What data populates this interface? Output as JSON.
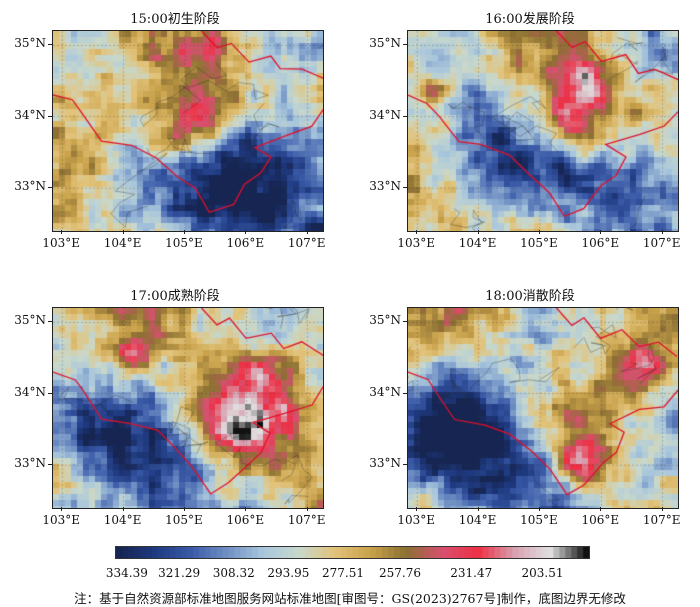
{
  "panels": [
    {
      "title": "15:00初生阶段",
      "seed": 11,
      "hotspots": [
        [
          0.55,
          0.4,
          0.1,
          1.0
        ],
        [
          0.45,
          0.55,
          0.06,
          0.7
        ],
        [
          0.6,
          0.1,
          0.06,
          0.6
        ]
      ],
      "cold": [
        [
          0.85,
          0.65,
          0.2
        ],
        [
          0.7,
          0.9,
          0.25
        ]
      ]
    },
    {
      "title": "16:00发展阶段",
      "seed": 23,
      "hotspots": [
        [
          0.6,
          0.45,
          0.12,
          1.0
        ],
        [
          0.65,
          0.25,
          0.08,
          0.8
        ],
        [
          0.1,
          0.3,
          0.04,
          0.6
        ]
      ],
      "cold": [
        [
          0.85,
          0.75,
          0.22
        ],
        [
          0.3,
          0.55,
          0.18
        ]
      ]
    },
    {
      "title": "17:00成熟阶段",
      "seed": 37,
      "hotspots": [
        [
          0.68,
          0.55,
          0.14,
          1.0
        ],
        [
          0.75,
          0.3,
          0.08,
          0.7
        ],
        [
          0.3,
          0.2,
          0.05,
          0.6
        ]
      ],
      "cold": [
        [
          0.45,
          0.8,
          0.2
        ],
        [
          0.1,
          0.55,
          0.15
        ]
      ]
    },
    {
      "title": "18:00消散阶段",
      "seed": 51,
      "hotspots": [
        [
          0.65,
          0.75,
          0.08,
          1.0
        ],
        [
          0.85,
          0.3,
          0.08,
          0.8
        ],
        [
          0.6,
          0.55,
          0.05,
          0.5
        ]
      ],
      "cold": [
        [
          0.2,
          0.55,
          0.2
        ],
        [
          0.4,
          0.85,
          0.2
        ]
      ]
    }
  ],
  "axes": {
    "lat_labels": [
      "35°N",
      "34°N",
      "33°N"
    ],
    "lat_values": [
      35,
      34,
      33
    ],
    "lon_labels": [
      "103°E",
      "104°E",
      "105°E",
      "106°E",
      "107°E"
    ],
    "lon_values": [
      103,
      104,
      105,
      106,
      107
    ],
    "lon_range": [
      102.85,
      107.25
    ],
    "lat_range": [
      32.4,
      35.2
    ]
  },
  "colorbar": {
    "tick_labels": [
      "334.39",
      "321.29",
      "308.32",
      "293.95",
      "277.51",
      "257.76",
      "231.47",
      "203.51"
    ],
    "tick_fractions": [
      0.025,
      0.135,
      0.25,
      0.365,
      0.48,
      0.6,
      0.75,
      0.9
    ],
    "colors": [
      "#162552",
      "#1f3a80",
      "#3a5aa8",
      "#6f8fc4",
      "#a8c6dc",
      "#c8d8cc",
      "#e2c37a",
      "#c9a24b",
      "#8b7033",
      "#d85070",
      "#ee3044",
      "#d8a0b0",
      "#e0e0e0",
      "#111111"
    ]
  },
  "note": "注：基于自然资源部标准地图服务网站标准地图[审图号：GS(2023)2767号]制作，底图边界无修改"
}
